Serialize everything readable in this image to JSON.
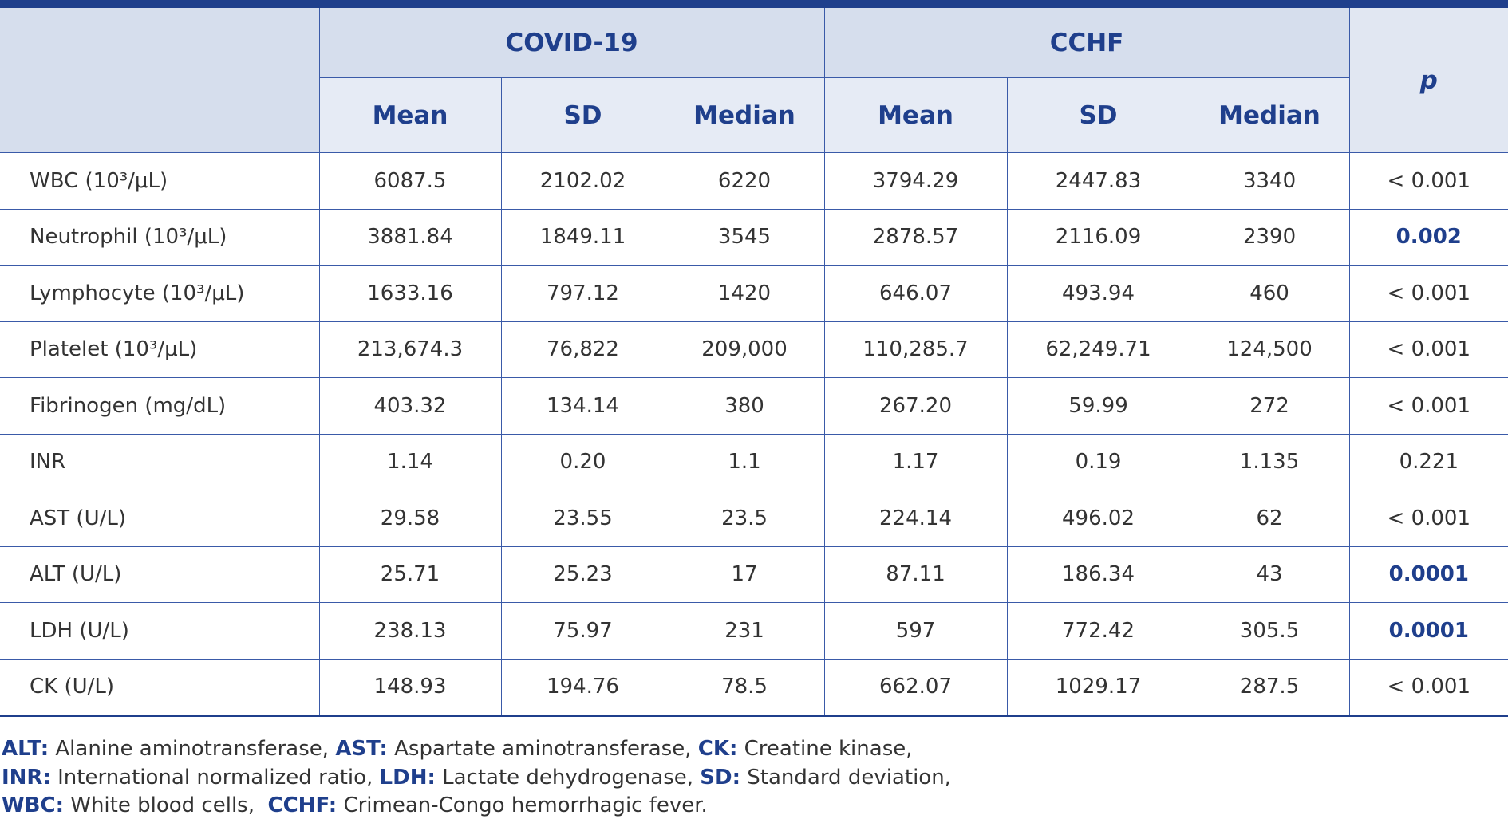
{
  "table": {
    "group_headers": [
      "COVID-19",
      "CCHF"
    ],
    "sub_headers": [
      "Mean",
      "SD",
      "Median",
      "Mean",
      "SD",
      "Median"
    ],
    "p_header": "p",
    "rows": [
      {
        "label": "WBC (10³/μL)",
        "cells": [
          "6087.5",
          "2102.02",
          "6220",
          "3794.29",
          "2447.83",
          "3340"
        ],
        "p": "< 0.001"
      },
      {
        "label": "Neutrophil (10³/μL)",
        "cells": [
          "3881.84",
          "1849.11",
          "3545",
          "2878.57",
          "2116.09",
          "2390"
        ],
        "p": "0.002",
        "p_bold": true
      },
      {
        "label": "Lymphocyte (10³/μL)",
        "cells": [
          "1633.16",
          "797.12",
          "1420",
          "646.07",
          "493.94",
          "460"
        ],
        "p": "< 0.001"
      },
      {
        "label": "Platelet (10³/μL)",
        "cells": [
          "213,674.3",
          "76,822",
          "209,000",
          "110,285.7",
          "62,249.71",
          "124,500"
        ],
        "p": "< 0.001"
      },
      {
        "label": "Fibrinogen (mg/dL)",
        "cells": [
          "403.32",
          "134.14",
          "380",
          "267.20",
          "59.99",
          "272"
        ],
        "p": "< 0.001"
      },
      {
        "label": "INR",
        "cells": [
          "1.14",
          "0.20",
          "1.1",
          "1.17",
          "0.19",
          "1.135"
        ],
        "p": "0.221"
      },
      {
        "label": "AST (U/L)",
        "cells": [
          "29.58",
          "23.55",
          "23.5",
          "224.14",
          "496.02",
          "62"
        ],
        "p": "< 0.001"
      },
      {
        "label": "ALT (U/L)",
        "cells": [
          "25.71",
          "25.23",
          "17",
          "87.11",
          "186.34",
          "43"
        ],
        "p": "0.0001",
        "p_bold": true
      },
      {
        "label": "LDH (U/L)",
        "cells": [
          "238.13",
          "75.97",
          "231",
          "597",
          "772.42",
          "305.5"
        ],
        "p": "0.0001",
        "p_bold": true
      },
      {
        "label": "CK (U/L)",
        "cells": [
          "148.93",
          "194.76",
          "78.5",
          "662.07",
          "1029.17",
          "287.5"
        ],
        "p": "< 0.001"
      }
    ]
  },
  "footnote": {
    "lines": [
      [
        {
          "abbr": "ALT:",
          "text": " Alanine aminotransferase, "
        },
        {
          "abbr": "AST:",
          "text": " Aspartate aminotransferase, "
        },
        {
          "abbr": "CK:",
          "text": " Creatine kinase,"
        }
      ],
      [
        {
          "abbr": "INR:",
          "text": " International normalized ratio, "
        },
        {
          "abbr": "LDH:",
          "text": " Lactate dehydrogenase, "
        },
        {
          "abbr": "SD:",
          "text": " Standard deviation,"
        }
      ],
      [
        {
          "abbr": "WBC:",
          "text": " White blood cells,  "
        },
        {
          "abbr": "CCHF:",
          "text": " Crimean-Congo hemorrhagic fever."
        }
      ]
    ]
  }
}
